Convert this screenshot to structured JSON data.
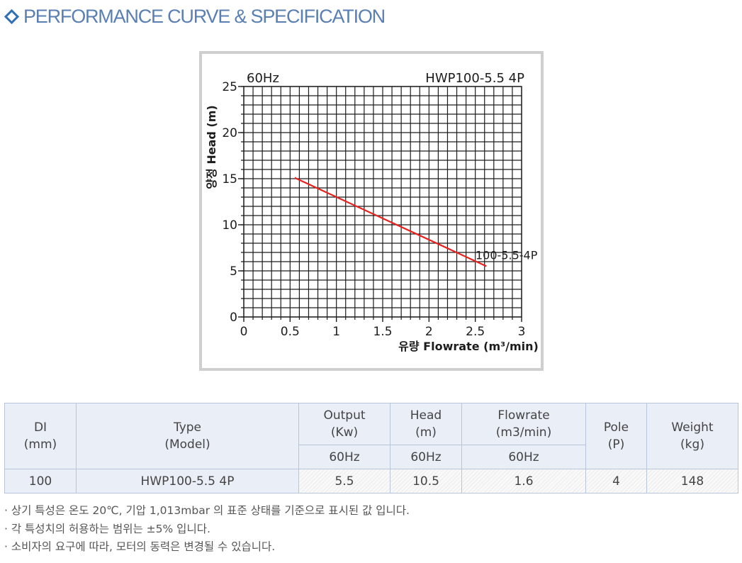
{
  "header": {
    "title": "PERFORMANCE CURVE & SPECIFICATION"
  },
  "chart_data": {
    "type": "line",
    "frequency_label": "60Hz",
    "model_label": "HWP100-5.5 4P",
    "ylabel": "양정 Head (m)",
    "xlabel": "유량 Flowrate (m³/min)",
    "xlim": [
      0,
      3
    ],
    "ylim": [
      0,
      25
    ],
    "x_ticks": [
      "0",
      "0.5",
      "1",
      "1.5",
      "2",
      "2.5",
      "3"
    ],
    "y_ticks": [
      "0",
      "5",
      "10",
      "15",
      "20",
      "25"
    ],
    "grid": true,
    "series": [
      {
        "name": "100-5.5-4P",
        "color": "#e8211e",
        "x": [
          0.55,
          2.62
        ],
        "y": [
          15.1,
          5.5
        ]
      }
    ]
  },
  "table": {
    "headers": {
      "di": "DI\n(mm)",
      "type": "Type\n(Model)",
      "output": "Output\n(Kw)",
      "head": "Head\n(m)",
      "flowrate": "Flowrate\n(m3/min)",
      "pole": "Pole\n(P)",
      "weight": "Weight\n(kg)",
      "output_freq": "60Hz",
      "head_freq": "60Hz",
      "flowrate_freq": "60Hz"
    },
    "row": {
      "di": "100",
      "model": "HWP100-5.5 4P",
      "output": "5.5",
      "head": "10.5",
      "flowrate": "1.6",
      "pole": "4",
      "weight": "148"
    }
  },
  "notes": [
    "· 상기 특성은 온도 20℃, 기압 1,013mbar 의 표준 상태를 기준으로 표시된 값 입니다.",
    "· 각 특성치의 허용하는 범위는 ±5% 입니다.",
    "· 소비자의 요구에 따라, 모터의 동력은 변경될 수 있습니다."
  ]
}
